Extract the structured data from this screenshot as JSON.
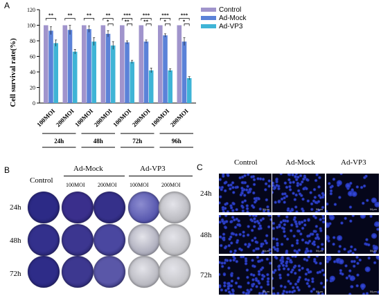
{
  "panel_labels": {
    "a": "A",
    "b": "B",
    "c": "C"
  },
  "chart_data": {
    "type": "bar",
    "ylabel": "Cell survival rate(%)",
    "ylim": [
      0,
      120
    ],
    "yticks": [
      0,
      20,
      40,
      60,
      80,
      100,
      120
    ],
    "categories": [
      "100MOI",
      "200MOI",
      "100MOI",
      "200MOI",
      "100MOI",
      "200MOI",
      "100MOI",
      "200MOI"
    ],
    "time_groups": [
      "24h",
      "48h",
      "72h",
      "96h"
    ],
    "series": [
      {
        "name": "Control",
        "color": "#a094cc",
        "values": [
          100,
          100,
          100,
          100,
          100,
          100,
          100,
          100
        ],
        "errors": [
          0,
          0,
          0,
          0,
          0,
          0,
          0,
          0
        ]
      },
      {
        "name": "Ad-Mock",
        "color": "#5b82d8",
        "values": [
          93,
          94,
          95,
          89,
          78,
          79,
          87,
          79
        ],
        "errors": [
          5,
          6,
          4,
          4,
          2,
          2,
          2,
          5
        ]
      },
      {
        "name": "Ad-VP3",
        "color": "#3fb4d6",
        "values": [
          77,
          66,
          79,
          74,
          53,
          42,
          42,
          32
        ],
        "errors": [
          4,
          3,
          5,
          5,
          2,
          3,
          2,
          2
        ]
      }
    ],
    "significance": [
      {
        "top": "**"
      },
      {
        "top": "**"
      },
      {
        "top": "**"
      },
      {
        "top": "**",
        "inner": "*"
      },
      {
        "top": "***",
        "inner": "**"
      },
      {
        "top": "***",
        "inner": "**"
      },
      {
        "top": "***",
        "inner": "*"
      },
      {
        "top": "***",
        "inner": "*"
      }
    ]
  },
  "panel_b": {
    "headers": {
      "control": "Control",
      "mock": "Ad-Mock",
      "vp3": "Ad-VP3"
    },
    "sub": [
      "100MOI",
      "200MOI",
      "100MOI",
      "200MOI"
    ],
    "rows": [
      "24h",
      "48h",
      "72h"
    ],
    "dish_colors": [
      [
        "#2c2a86",
        "#3a2f8c",
        "#35308a",
        "#5a5ab0",
        "#b6b6bc"
      ],
      [
        "#33308c",
        "#3c3690",
        "#4a47a0",
        "#a8a8b8",
        "#bdbdc2"
      ],
      [
        "#2e2c88",
        "#3d3890",
        "#5a57a8",
        "#b4b4bc",
        "#c2c2c6"
      ]
    ]
  },
  "panel_c": {
    "headers": {
      "control": "Control",
      "mock": "Ad-Mock",
      "vp3": "Ad-VP3"
    },
    "rows": [
      "24h",
      "48h",
      "72h"
    ],
    "scalebar": "50μm"
  }
}
